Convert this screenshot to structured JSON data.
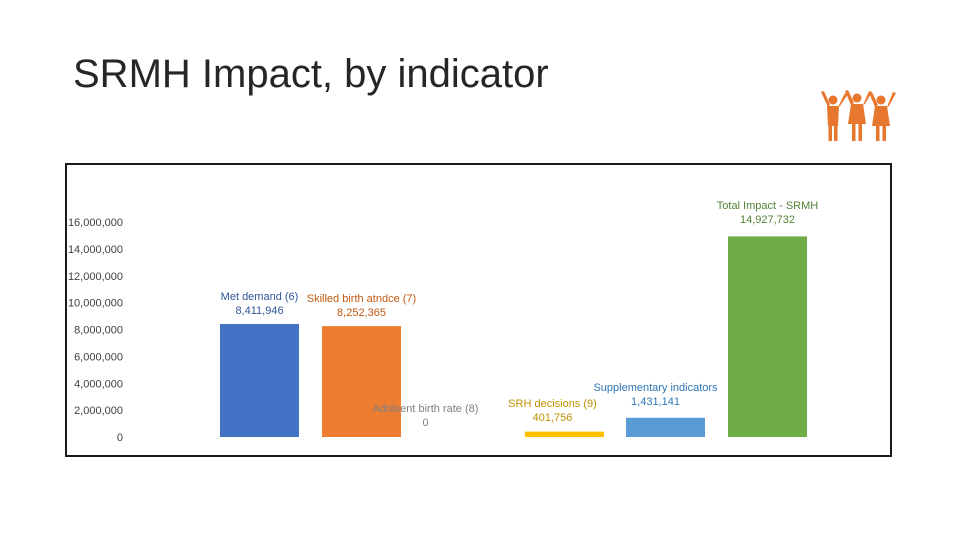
{
  "slide": {
    "title": "SRMH Impact, by indicator"
  },
  "icons": {
    "logo": "people-celebrating-icon",
    "logo_color": "#E8772E"
  },
  "chart_data": {
    "type": "bar",
    "title": "",
    "xlabel": "",
    "ylabel": "",
    "ylim": [
      0,
      16000000
    ],
    "yticks": [
      0,
      2000000,
      4000000,
      6000000,
      8000000,
      10000000,
      12000000,
      14000000,
      16000000
    ],
    "ytick_labels": [
      "0",
      "2,000,000",
      "4,000,000",
      "6,000,000",
      "8,000,000",
      "10,000,000",
      "12,000,000",
      "14,000,000",
      "16,000,000"
    ],
    "grid": false,
    "categories": [
      "Met demand (6)",
      "Skilled birth atndce (7)",
      "Adolsent birth rate (8)",
      "SRH decisions (9)",
      "Supplementary indicators",
      "Total Impact - SRMH"
    ],
    "values": [
      8411946,
      8252365,
      0,
      401756,
      1431141,
      14927732
    ],
    "value_labels": [
      "8,411,946",
      "8,252,365",
      "0",
      "401,756",
      "1,431,141",
      "14,927,732"
    ],
    "colors": [
      "#4472C4",
      "#ED7D31",
      "#A5A5A5",
      "#FFC000",
      "#5B9BD5",
      "#70AD47"
    ],
    "label_colors": [
      "#2F5597",
      "#C55A11",
      "#7F7F7F",
      "#BF9000",
      "#2E75B6",
      "#548235"
    ]
  }
}
